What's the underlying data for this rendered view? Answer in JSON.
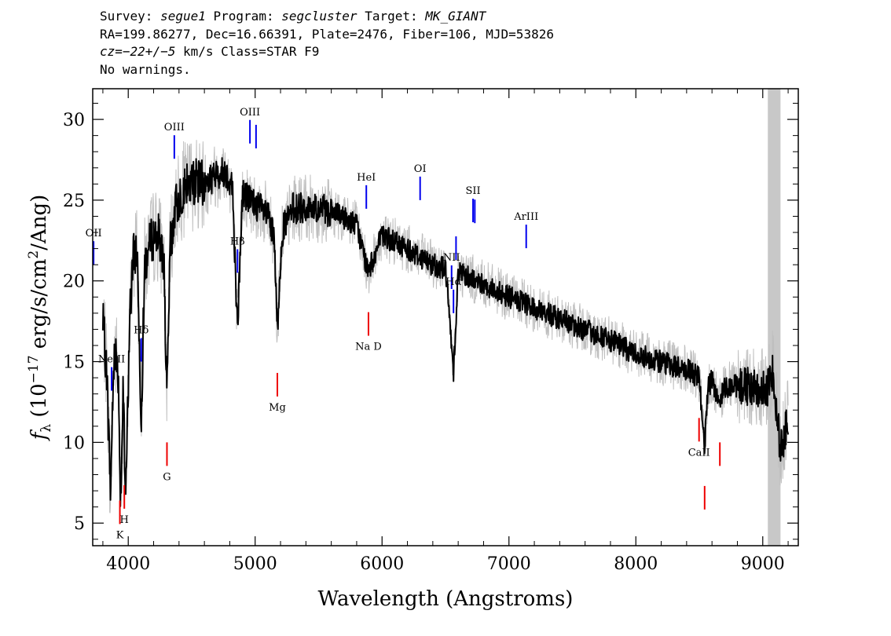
{
  "header": {
    "survey_label": "Survey:",
    "survey": "segue1",
    "program_label": "Program:",
    "program": "segcluster",
    "target_label": "Target:",
    "target": "MK_GIANT",
    "line2": "RA=199.86277, Dec=16.66391, Plate=2476, Fiber=106, MJD=53826",
    "cz_label": "cz=",
    "cz_value": "−22+/−5",
    "cz_rest": " km/s Class=STAR F9",
    "line4": "No warnings."
  },
  "colors": {
    "spectrum": "#000000",
    "error_band": "#bfbfbf",
    "emission_line": "#0000ee",
    "absorption_line": "#ee0000",
    "masked_region": "#c8c8c8"
  },
  "chart_data": {
    "type": "line",
    "xlabel": "Wavelength (Angstroms)",
    "ylabel_prefix": "f",
    "ylabel_sub": "λ",
    "ylabel_mid": " (10",
    "ylabel_exp": "−17",
    "ylabel_mid2": " erg/s/cm",
    "ylabel_exp2": "2",
    "ylabel_end": "/Ang)",
    "xlim": [
      3720,
      9280
    ],
    "ylim": [
      3.6,
      31.9
    ],
    "xticks": [
      4000,
      5000,
      6000,
      7000,
      8000,
      9000
    ],
    "xtick_labels": [
      "4000",
      "5000",
      "6000",
      "7000",
      "8000",
      "9000"
    ],
    "yticks": [
      5,
      10,
      15,
      20,
      25,
      30
    ],
    "ytick_labels": [
      "5",
      "10",
      "15",
      "20",
      "25",
      "30"
    ],
    "masked_region": [
      9040,
      9140
    ],
    "spectrum": {
      "x": [
        3800,
        3830,
        3860,
        3890,
        3920,
        3940,
        3960,
        3980,
        4010,
        4040,
        4070,
        4102,
        4130,
        4180,
        4230,
        4280,
        4305,
        4330,
        4370,
        4420,
        4480,
        4540,
        4600,
        4680,
        4760,
        4820,
        4861,
        4900,
        4960,
        5040,
        5100,
        5150,
        5175,
        5210,
        5300,
        5450,
        5600,
        5800,
        5890,
        6000,
        6200,
        6400,
        6500,
        6563,
        6600,
        6800,
        7000,
        7200,
        7500,
        7800,
        8000,
        8200,
        8400,
        8500,
        8542,
        8570,
        8600,
        8662,
        8700,
        8800,
        8900,
        9000,
        9030,
        9080,
        9140,
        9170,
        9200
      ],
      "y": [
        17.5,
        14.5,
        7.0,
        16.0,
        14.5,
        6.5,
        13.0,
        6.0,
        17.5,
        21.5,
        22.0,
        11.5,
        21.0,
        22.5,
        23.0,
        21.5,
        12.5,
        22.0,
        24.5,
        25.5,
        26.0,
        26.2,
        26.0,
        26.5,
        26.8,
        26.0,
        17.0,
        25.5,
        25.0,
        24.5,
        24.0,
        22.5,
        16.8,
        23.0,
        24.5,
        24.5,
        24.3,
        23.5,
        20.5,
        22.8,
        22.0,
        21.0,
        20.8,
        14.5,
        20.6,
        19.8,
        19.0,
        18.3,
        17.3,
        16.3,
        15.5,
        15.0,
        14.5,
        14.0,
        9.8,
        13.5,
        13.8,
        12.5,
        13.5,
        13.5,
        13.5,
        13.3,
        13.0,
        14.5,
        9.5,
        10.5,
        11.5
      ]
    },
    "lines": [
      {
        "label": "OII",
        "wave": 3727,
        "type": "emission"
      },
      {
        "label": "NeIII",
        "wave": 3869,
        "type": "emission"
      },
      {
        "label": "K",
        "wave": 3934,
        "type": "absorption"
      },
      {
        "label": "H",
        "wave": 3969,
        "type": "absorption"
      },
      {
        "label": "Hδ",
        "wave": 4102,
        "type": "emission"
      },
      {
        "label": "G",
        "wave": 4305,
        "type": "absorption"
      },
      {
        "label": "OIII",
        "wave": 4363,
        "type": "emission"
      },
      {
        "label": "Hβ",
        "wave": 4861,
        "type": "emission"
      },
      {
        "label": "OIII",
        "wave": 4959,
        "type": "emission"
      },
      {
        "label": "OIII",
        "wave": 5007,
        "type": "emission"
      },
      {
        "label": "Mg",
        "wave": 5175,
        "type": "absorption"
      },
      {
        "label": "HeI",
        "wave": 5876,
        "type": "emission"
      },
      {
        "label": "Na D",
        "wave": 5893,
        "type": "absorption"
      },
      {
        "label": "OI",
        "wave": 6300,
        "type": "emission"
      },
      {
        "label": "NII",
        "wave": 6548,
        "type": "emission"
      },
      {
        "label": "Hα",
        "wave": 6563,
        "type": "emission"
      },
      {
        "label": "NII",
        "wave": 6583,
        "type": "emission"
      },
      {
        "label": "SII",
        "wave": 6717,
        "type": "emission"
      },
      {
        "label": "SII",
        "wave": 6731,
        "type": "emission"
      },
      {
        "label": "ArIII",
        "wave": 7136,
        "type": "emission"
      },
      {
        "label": "CaII",
        "wave": 8498,
        "type": "absorption"
      },
      {
        "label": "CaII",
        "wave": 8542,
        "type": "absorption"
      },
      {
        "label": "CaII",
        "wave": 8662,
        "type": "absorption"
      }
    ]
  }
}
